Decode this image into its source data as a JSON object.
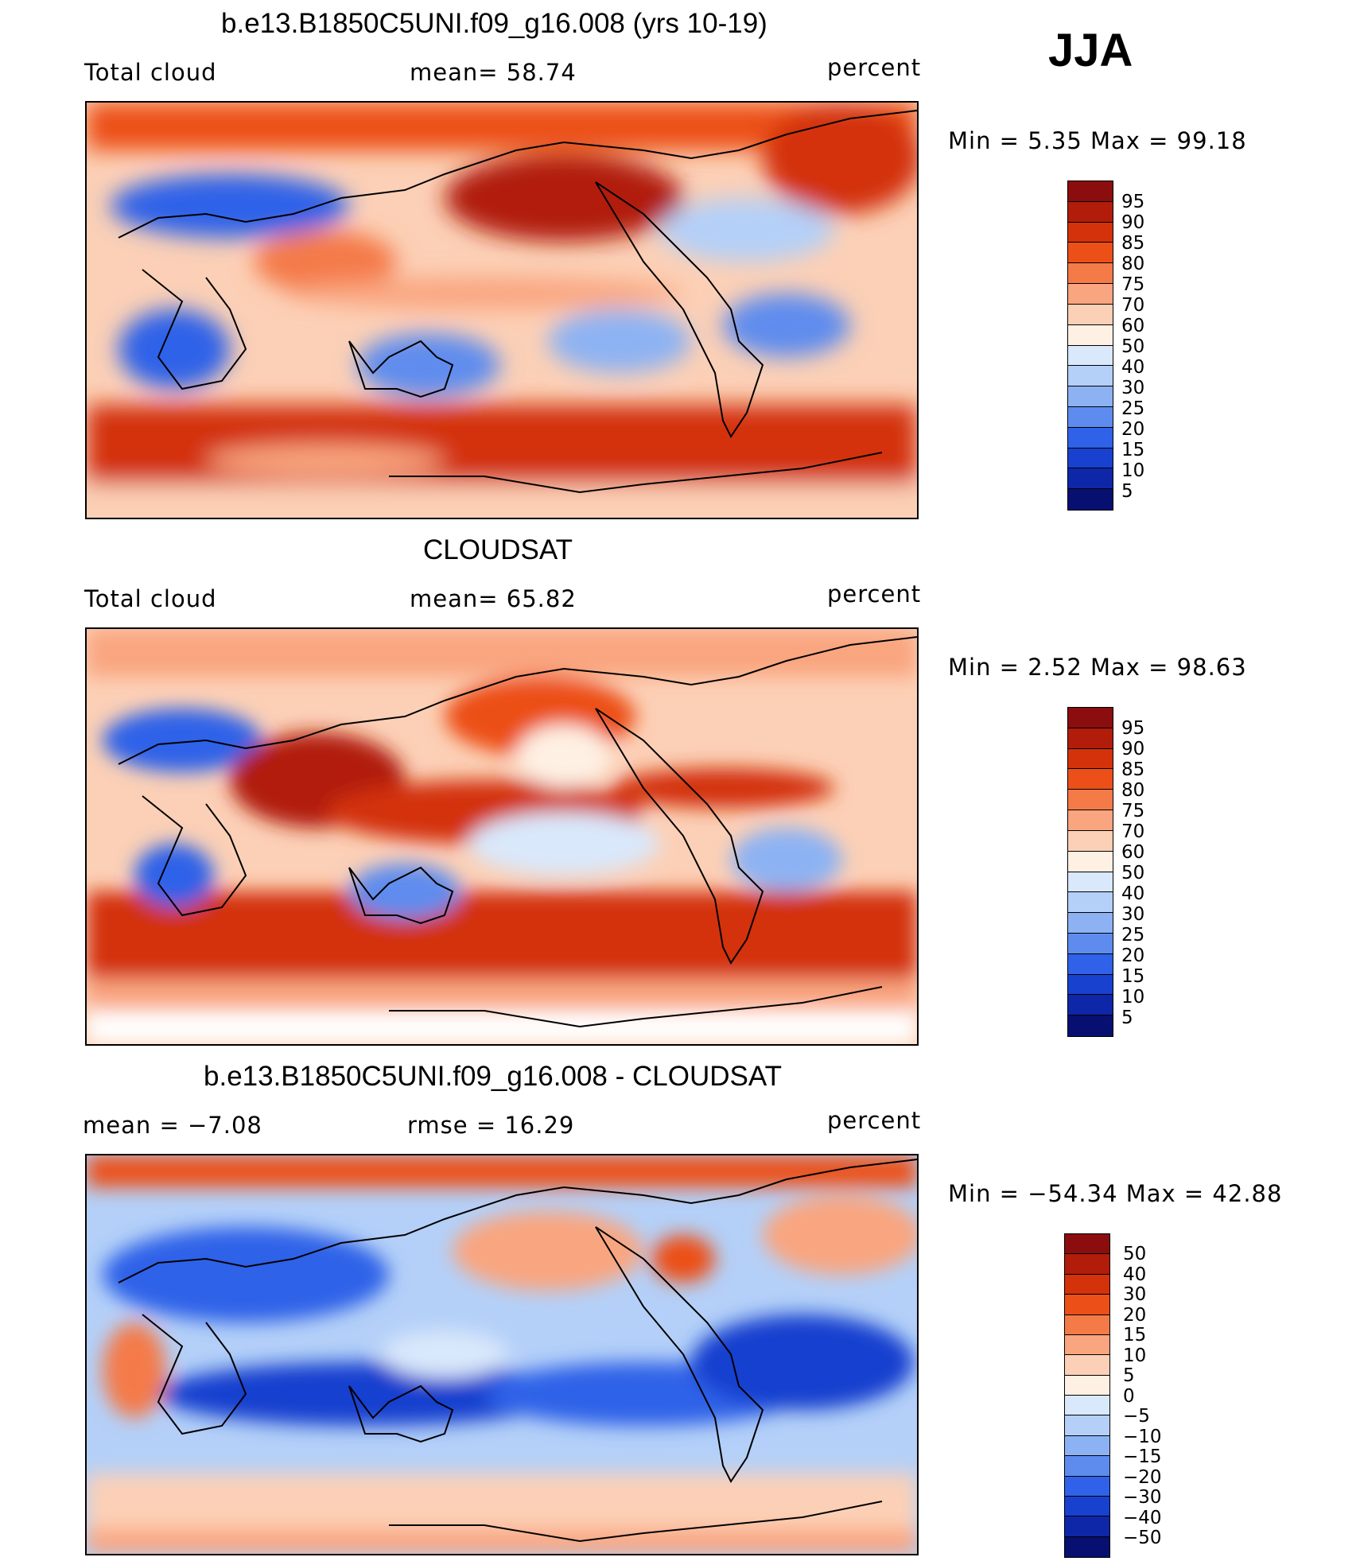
{
  "season": "JJA",
  "panels": [
    {
      "title": "b.e13.B1850C5UNI.f09_g16.008 (yrs 10-19)",
      "left_label": "Total cloud",
      "center_label": "mean=   58.74",
      "units": "percent",
      "minmax": "Min  =     5.35  Max  =    99.18",
      "colorbar_levels": [
        "95",
        "90",
        "85",
        "80",
        "75",
        "70",
        "60",
        "50",
        "40",
        "30",
        "25",
        "20",
        "15",
        "10",
        "5"
      ],
      "colorbar_colors": [
        "#8b0d0d",
        "#b11d0a",
        "#d3320b",
        "#ec5018",
        "#f47a48",
        "#f9a57f",
        "#fcd0b6",
        "#fef0e3",
        "#d9e8fb",
        "#b4d0f8",
        "#8db2f3",
        "#5e8cee",
        "#2f62e8",
        "#1841cf",
        "#0d27a8",
        "#070f70"
      ]
    },
    {
      "title": "CLOUDSAT",
      "left_label": "Total cloud",
      "center_label": "mean=   65.82",
      "units": "percent",
      "minmax": "Min  =     2.52  Max  =    98.63",
      "colorbar_levels": [
        "95",
        "90",
        "85",
        "80",
        "75",
        "70",
        "60",
        "50",
        "40",
        "30",
        "25",
        "20",
        "15",
        "10",
        "5"
      ],
      "colorbar_colors": [
        "#8b0d0d",
        "#b11d0a",
        "#d3320b",
        "#ec5018",
        "#f47a48",
        "#f9a57f",
        "#fcd0b6",
        "#fef0e3",
        "#d9e8fb",
        "#b4d0f8",
        "#8db2f3",
        "#5e8cee",
        "#2f62e8",
        "#1841cf",
        "#0d27a8",
        "#070f70"
      ]
    },
    {
      "title": "b.e13.B1850C5UNI.f09_g16.008 - CLOUDSAT",
      "left_label": "mean  =    −7.08",
      "center_label": "rmse  =    16.29",
      "units": "percent",
      "minmax": "Min  = −54.34  Max  =    42.88",
      "colorbar_levels": [
        "50",
        "40",
        "30",
        "20",
        "15",
        "10",
        "5",
        "0",
        "−5",
        "−10",
        "−15",
        "−20",
        "−30",
        "−40",
        "−50"
      ],
      "colorbar_colors": [
        "#8b0d0d",
        "#b11d0a",
        "#d3320b",
        "#ec5018",
        "#f47a48",
        "#f9a57f",
        "#fcd0b6",
        "#fef0e3",
        "#d9e8fb",
        "#b4d0f8",
        "#8db2f3",
        "#5e8cee",
        "#2f62e8",
        "#1841cf",
        "#0d27a8",
        "#070f70"
      ]
    }
  ]
}
